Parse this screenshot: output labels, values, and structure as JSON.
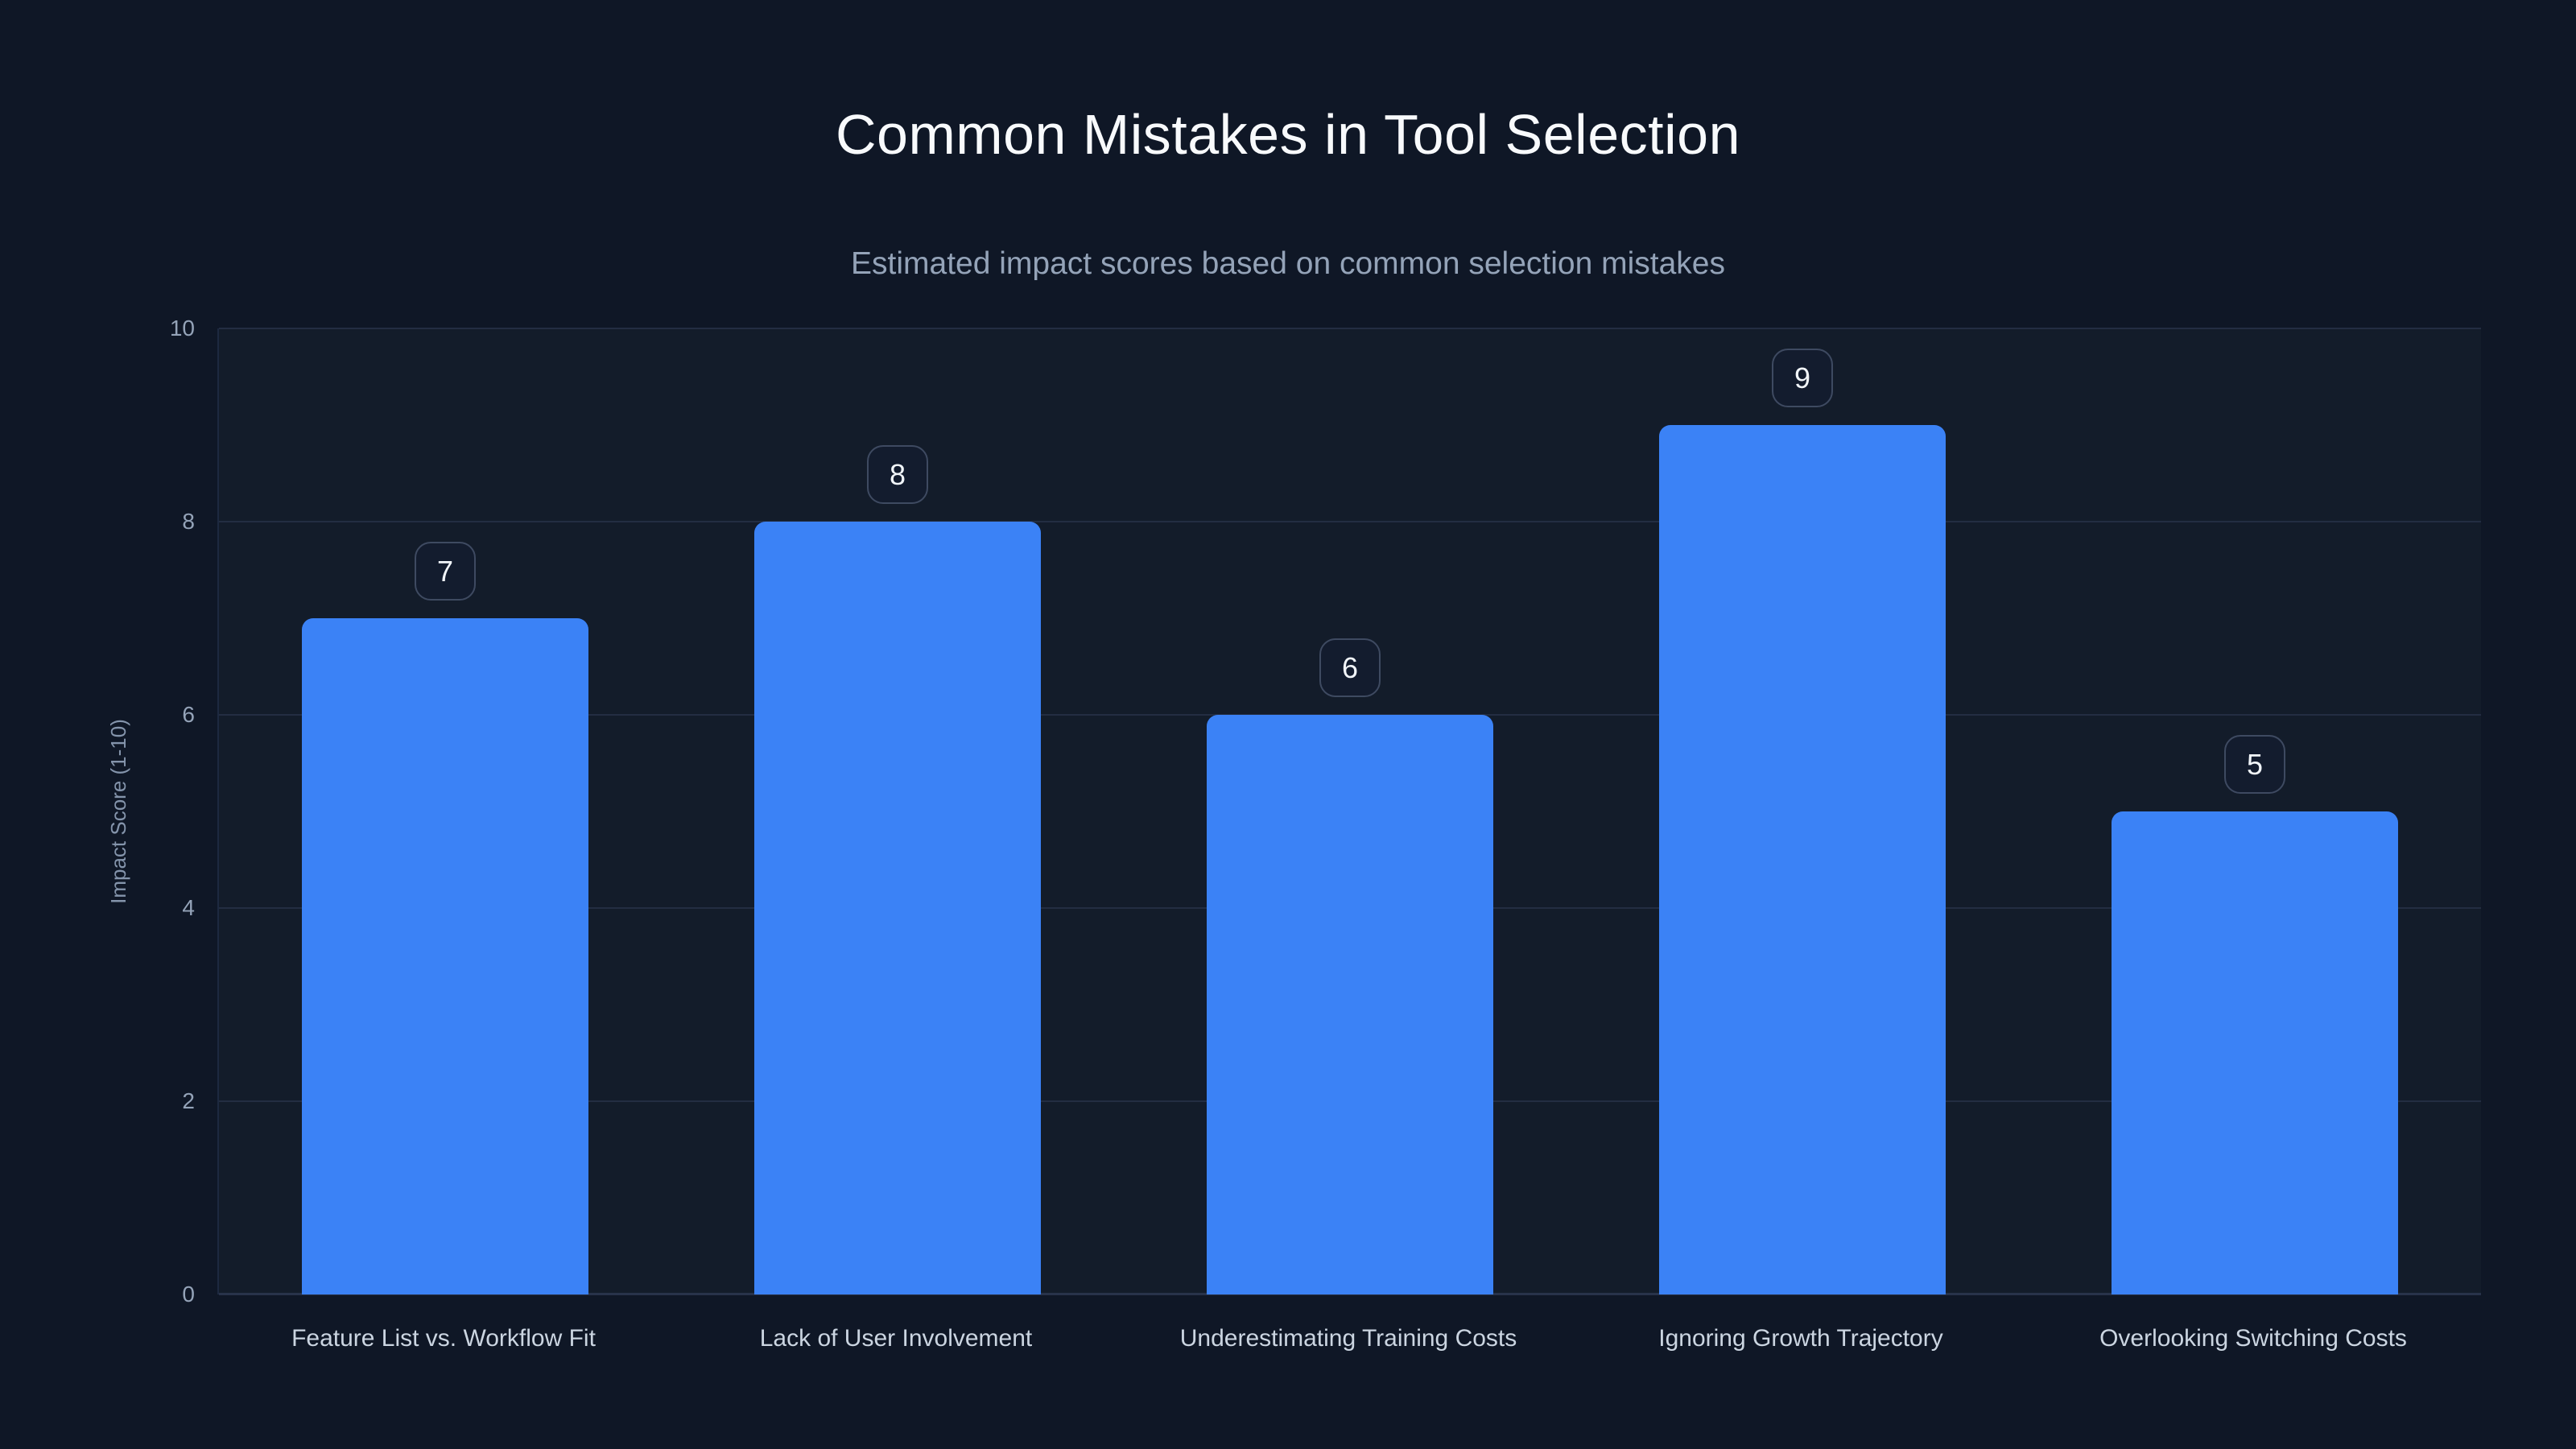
{
  "page": {
    "background_color": "#0f1726"
  },
  "chart_data": {
    "type": "bar",
    "title": "Common Mistakes in Tool Selection",
    "subtitle": "Estimated impact scores based on common selection mistakes",
    "categories": [
      "Feature List vs. Workflow Fit",
      "Lack of User Involvement",
      "Underestimating Training Costs",
      "Ignoring Growth Trajectory",
      "Overlooking Switching Costs"
    ],
    "values": [
      7,
      8,
      6,
      9,
      5
    ],
    "value_labels": [
      "7",
      "8",
      "6",
      "9",
      "5"
    ],
    "xlabel": "",
    "ylabel": "Impact Score (1-10)",
    "ylim": [
      0,
      10
    ],
    "yticks": [
      0,
      2,
      4,
      6,
      8,
      10
    ],
    "grid": "horizontal",
    "legend": "none",
    "bar_color": "#3b82f6",
    "gridline_color": "#232d42",
    "axis_line_color": "#28334a",
    "title_color": "#f8fafc",
    "subtitle_color": "#94a3b8",
    "tick_label_color": "#94a3b8",
    "category_label_color": "#cbd5e1",
    "badge_border_color": "#3e4a61",
    "badge_background_color": "#131c2e",
    "badge_text_color": "#f1f5f9"
  }
}
